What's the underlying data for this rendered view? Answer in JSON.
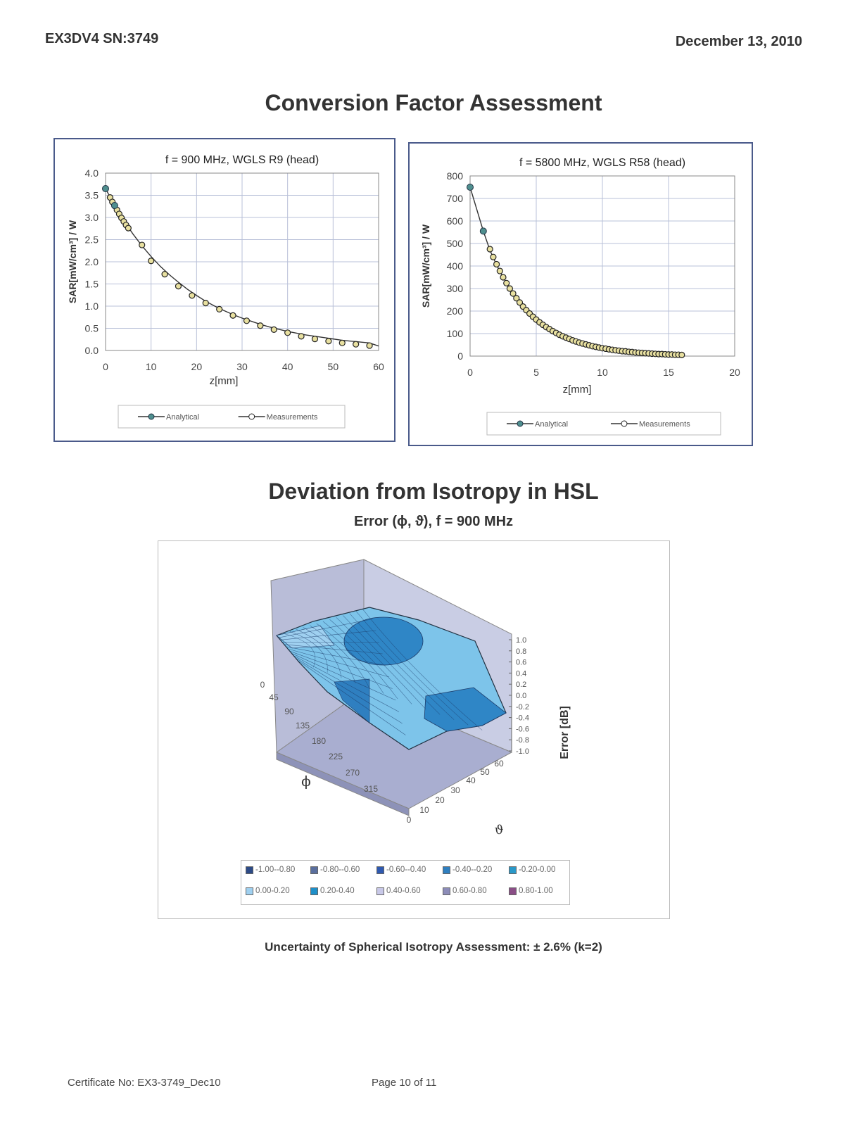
{
  "header": {
    "left": "EX3DV4 SN:3749",
    "right": "December 13, 2010"
  },
  "section1_title": "Conversion Factor Assessment",
  "chart_data": [
    {
      "type": "line",
      "title": "f = 900 MHz, WGLS R9 (head)",
      "xlabel": "z[mm]",
      "ylabel": "SAR[mW/cm³] / W",
      "xlim": [
        0,
        60
      ],
      "ylim": [
        0,
        4.0
      ],
      "xticks": [
        "0",
        "10",
        "20",
        "30",
        "40",
        "50",
        "60"
      ],
      "yticks": [
        "0.0",
        "0.5",
        "1.0",
        "1.5",
        "2.0",
        "2.5",
        "3.0",
        "3.5",
        "4.0"
      ],
      "legend": [
        "Analytical",
        "Measurements"
      ],
      "legend_position": "bottom",
      "grid": true,
      "series": [
        {
          "name": "Analytical",
          "color": "#4f8f8f",
          "x": [
            0,
            2,
            4,
            6,
            8,
            10,
            12,
            14,
            16,
            18,
            20,
            22,
            24,
            26,
            28,
            30,
            32,
            34,
            36,
            38,
            40,
            42,
            44,
            46,
            48,
            50,
            52,
            54,
            56,
            58,
            60
          ],
          "y": [
            3.65,
            3.27,
            2.93,
            2.63,
            2.36,
            2.12,
            1.9,
            1.71,
            1.54,
            1.38,
            1.24,
            1.11,
            1.0,
            0.9,
            0.81,
            0.73,
            0.66,
            0.59,
            0.53,
            0.48,
            0.43,
            0.39,
            0.35,
            0.32,
            0.29,
            0.26,
            0.23,
            0.21,
            0.19,
            0.17,
            0.1
          ]
        },
        {
          "name": "Measurements",
          "color": "#222222",
          "x": [
            0,
            1,
            1.5,
            2,
            2.5,
            3,
            3.5,
            4,
            4.5,
            5,
            8,
            10,
            13,
            16,
            19,
            22,
            25,
            28,
            31,
            34,
            37,
            40,
            43,
            46,
            49,
            52,
            55,
            58
          ],
          "y": [
            3.65,
            3.45,
            3.35,
            3.26,
            3.17,
            3.08,
            2.99,
            2.91,
            2.83,
            2.76,
            2.38,
            2.02,
            1.72,
            1.45,
            1.24,
            1.07,
            0.93,
            0.79,
            0.67,
            0.56,
            0.47,
            0.4,
            0.32,
            0.26,
            0.21,
            0.17,
            0.14,
            0.11
          ]
        }
      ]
    },
    {
      "type": "line",
      "title": "f = 5800 MHz, WGLS R58 (head)",
      "xlabel": "z[mm]",
      "ylabel": "SAR[mW/cm³] / W",
      "xlim": [
        0,
        20
      ],
      "ylim": [
        0,
        800
      ],
      "xticks": [
        "0",
        "5",
        "10",
        "15",
        "20"
      ],
      "yticks": [
        "0",
        "100",
        "200",
        "300",
        "400",
        "500",
        "600",
        "700",
        "800"
      ],
      "legend": [
        "Analytical",
        "Measurements"
      ],
      "legend_position": "bottom",
      "grid": true,
      "series": [
        {
          "name": "Analytical",
          "color": "#4f8f8f",
          "x": [
            0,
            1,
            1.5,
            2,
            2.5,
            3,
            3.5,
            4,
            4.5,
            5,
            5.5,
            6,
            7,
            8,
            9,
            10,
            11,
            12,
            13,
            14,
            15,
            16
          ],
          "y": [
            750,
            555,
            470,
            405,
            350,
            300,
            258,
            222,
            190,
            163,
            140,
            120,
            88,
            64,
            47,
            34,
            25,
            18,
            13,
            10,
            7,
            5
          ]
        },
        {
          "name": "Measurements",
          "color": "#222222",
          "x": [
            0,
            1,
            1.5,
            1.75,
            2,
            2.25,
            2.5,
            2.75,
            3,
            3.25,
            3.5,
            3.75,
            4,
            4.25,
            4.5,
            4.75,
            5,
            5.25,
            5.5,
            5.75,
            6,
            6.25,
            6.5,
            6.75,
            7,
            7.25,
            7.5,
            7.75,
            8,
            8.25,
            8.5,
            8.75,
            9,
            9.25,
            9.5,
            9.75,
            10,
            10.25,
            10.5,
            10.75,
            11,
            11.25,
            11.5,
            11.75,
            12,
            12.25,
            12.5,
            12.75,
            13,
            13.25,
            13.5,
            13.75,
            14,
            14.25,
            14.5,
            14.75,
            15,
            15.25,
            15.5,
            15.75,
            16
          ],
          "y": [
            750,
            555,
            475,
            440,
            408,
            378,
            350,
            324,
            300,
            278,
            257,
            238,
            220,
            204,
            189,
            175,
            162,
            150,
            139,
            129,
            120,
            111,
            103,
            95,
            88,
            82,
            76,
            70,
            65,
            60,
            56,
            52,
            48,
            44,
            41,
            38,
            35,
            33,
            30,
            28,
            26,
            24,
            22,
            21,
            19,
            18,
            16,
            15,
            14,
            13,
            12,
            11,
            10,
            9,
            9,
            8,
            7,
            7,
            6,
            6,
            5
          ]
        }
      ]
    },
    {
      "type": "surface",
      "title": "Error (ϕ, ϑ), f = 900 MHz",
      "zlabel": "Error [dB]",
      "phi_label": "ϕ",
      "theta_label": "ϑ",
      "zlim": [
        -1.0,
        1.0
      ],
      "zticks": [
        "1.0",
        "0.8",
        "0.6",
        "0.4",
        "0.2",
        "0.0",
        "-0.2",
        "-0.4",
        "-0.6",
        "-0.8",
        "-1.0"
      ],
      "phi_ticks": [
        "0",
        "45",
        "90",
        "135",
        "180",
        "225",
        "270",
        "315"
      ],
      "theta_ticks": [
        "0",
        "10",
        "20",
        "30",
        "40",
        "50",
        "60"
      ],
      "legend": [
        {
          "label": "-1.00--0.80",
          "color": "#2c4a86"
        },
        {
          "label": "-0.80--0.60",
          "color": "#5a6f9e"
        },
        {
          "label": "-0.60--0.40",
          "color": "#2f59b0"
        },
        {
          "label": "-0.40--0.20",
          "color": "#2f7fc0"
        },
        {
          "label": "-0.20-0.00",
          "color": "#2a98c8"
        },
        {
          "label": "0.00-0.20",
          "color": "#9fd0f0"
        },
        {
          "label": "0.20-0.40",
          "color": "#1e8fc8"
        },
        {
          "label": "0.40-0.60",
          "color": "#c8c8e8"
        },
        {
          "label": "0.60-0.80",
          "color": "#8c8cb8"
        },
        {
          "label": "0.80-1.00",
          "color": "#8a4e86"
        }
      ]
    }
  ],
  "uncertainty": "Uncertainty of Spherical Isotropy Assessment: ± 2.6% (k=2)",
  "section2_title": "Deviation from Isotropy in HSL",
  "section2_subtitle": "Error (ϕ, ϑ), f = 900 MHz",
  "footer": {
    "certificate": "Certificate No: EX3-3749_Dec10",
    "page": "Page 10 of 11"
  },
  "colors": {
    "analytical": "#4f8f8f",
    "measurement_fill": "#e8e0a0",
    "panel_border": "#4a5a8a"
  }
}
